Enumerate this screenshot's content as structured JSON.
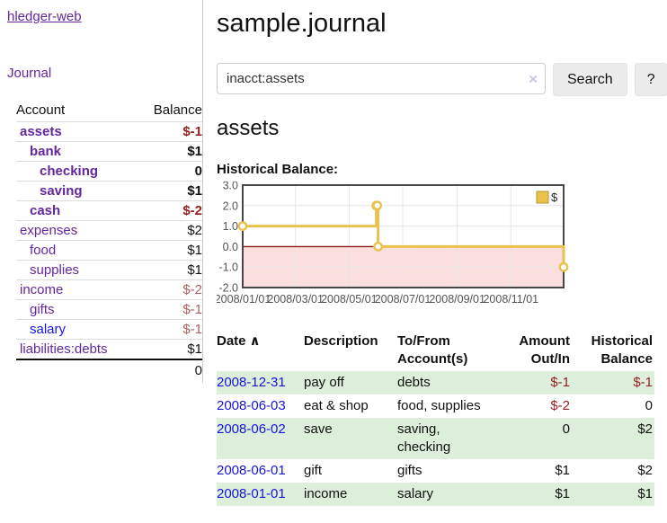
{
  "colors": {
    "link_purple": "#63279e",
    "link_blue": "#1515dd",
    "negative_dark": "#941f1f",
    "negative_light": "#ae5f5f",
    "row_green": "#ddeeda",
    "accent_gold": "#e8c24a"
  },
  "sidebar": {
    "app_title": "hledger-web",
    "journal_link": "Journal",
    "accounts_table": {
      "account_header": "Account",
      "balance_header": "Balance",
      "rows": [
        {
          "account": "assets",
          "balance": "$-1",
          "indent": 1,
          "bold": true,
          "neg": true
        },
        {
          "account": "bank",
          "balance": "$1",
          "indent": 2,
          "bold": true
        },
        {
          "account": "checking",
          "balance": "0",
          "indent": 3,
          "bold": true
        },
        {
          "account": "saving",
          "balance": "$1",
          "indent": 3,
          "bold": true
        },
        {
          "account": "cash",
          "balance": "$-2",
          "indent": 2,
          "bold": true,
          "neg": true
        },
        {
          "account": "expenses",
          "balance": "$2",
          "indent": 1
        },
        {
          "account": "food",
          "balance": "$1",
          "indent": 2
        },
        {
          "account": "supplies",
          "balance": "$1",
          "indent": 2
        },
        {
          "account": "income",
          "balance": "$-2",
          "indent": 1,
          "neg": true
        },
        {
          "account": "gifts",
          "balance": "$-1",
          "indent": 2,
          "neg": true
        },
        {
          "account": "salary",
          "balance": "$-1",
          "indent": 2,
          "neg": true,
          "unvisited": true
        },
        {
          "account": "liabilities:debts",
          "balance": "$1",
          "indent": 1
        }
      ],
      "total": "0"
    }
  },
  "main": {
    "title": "sample.journal",
    "account_heading": "assets",
    "section_label": "Historical Balance:"
  },
  "search": {
    "value": "inacct:assets",
    "clear_icon": "×",
    "button_label": "Search",
    "help_label": "?"
  },
  "chart_data": {
    "type": "line",
    "step": true,
    "title": "Historical Balance of assets",
    "series": [
      {
        "name": "$",
        "color": "#e8c24a",
        "x_days": [
          0,
          152,
          153,
          154,
          365
        ],
        "values": [
          1,
          2,
          2,
          0,
          -1
        ]
      }
    ],
    "x_tick_days": [
      0,
      60,
      121,
      182,
      244,
      305
    ],
    "x_tick_labels": [
      "2008/01/01",
      "2008/03/01",
      "2008/05/01",
      "2008/07/01",
      "2008/09/01",
      "2008/11/01"
    ],
    "y_ticks": [
      3.0,
      2.0,
      1.0,
      0.0,
      -1.0,
      -2.0
    ],
    "xlim_days": [
      0,
      365
    ],
    "ylim": [
      -2,
      3
    ],
    "grid_on": true,
    "legend_position": "top-right",
    "legend": {
      "label": "$",
      "swatch_color": "#e8c24a",
      "swatch_border": "#b8952e"
    },
    "negative_region_fill": "#fbdede",
    "zero_line_color": "#8b1c1c",
    "grid_color": "#e5e5e5",
    "border_color": "#474747",
    "marker_fill": "#ffffff",
    "tick_label_color": "#545454"
  },
  "register": {
    "sort_icon_glyph": "∧",
    "headers": {
      "date": "Date",
      "description": "Description",
      "accounts_line1": "To/From",
      "accounts_line2": "Account(s)",
      "amount_line1": "Amount",
      "amount_line2": "Out/In",
      "balance_line1": "Historical",
      "balance_line2": "Balance"
    },
    "rows": [
      {
        "date": "2008-12-31",
        "description": "pay off",
        "accounts": "debts",
        "amount": "$-1",
        "amount_neg": true,
        "balance": "$-1",
        "balance_neg": true,
        "shaded": true
      },
      {
        "date": "2008-06-03",
        "description": "eat & shop",
        "accounts": "food, supplies",
        "amount": "$-2",
        "amount_neg": true,
        "balance": "0",
        "balance_neg": false,
        "shaded": false
      },
      {
        "date": "2008-06-02",
        "description": "save",
        "accounts": "saving, checking",
        "amount": "0",
        "amount_neg": false,
        "balance": "$2",
        "balance_neg": false,
        "shaded": true
      },
      {
        "date": "2008-06-01",
        "description": "gift",
        "accounts": "gifts",
        "amount": "$1",
        "amount_neg": false,
        "balance": "$2",
        "balance_neg": false,
        "shaded": false
      },
      {
        "date": "2008-01-01",
        "description": "income",
        "accounts": "salary",
        "amount": "$1",
        "amount_neg": false,
        "balance": "$1",
        "balance_neg": false,
        "shaded": true
      }
    ]
  }
}
